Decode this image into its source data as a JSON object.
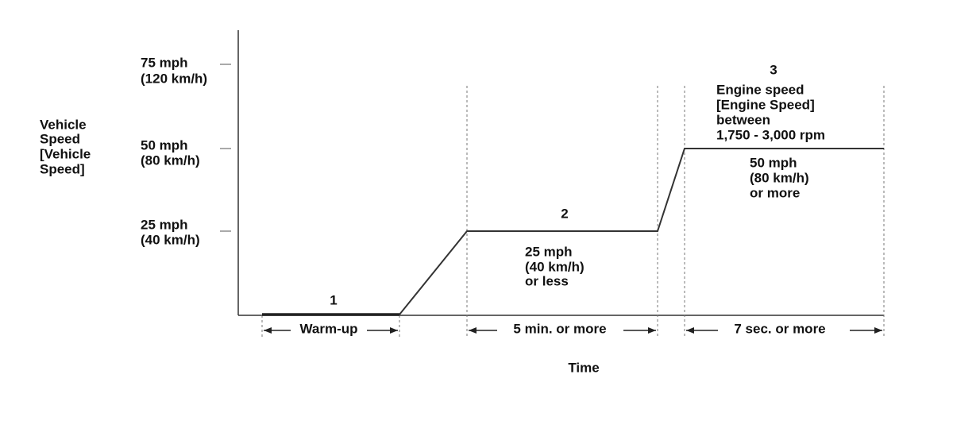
{
  "y_axis": {
    "label": [
      "Vehicle",
      "Speed",
      "[Vehicle",
      "Speed]"
    ],
    "ticks": [
      [
        "75 mph",
        "(120 km/h)"
      ],
      [
        "50 mph",
        "(80 km/h)"
      ],
      [
        "25 mph",
        "(40 km/h)"
      ]
    ]
  },
  "x_axis": {
    "label": "Time"
  },
  "stages": [
    {
      "number": "1",
      "duration": "Warm-up"
    },
    {
      "number": "2",
      "condition": [
        "25 mph",
        "(40 km/h)",
        "or less"
      ],
      "duration": "5 min. or more"
    },
    {
      "number": "3",
      "note": [
        "Engine speed",
        "[Engine Speed]",
        "between",
        "1,750 - 3,000 rpm"
      ],
      "condition": [
        "50 mph",
        "(80 km/h)",
        "or more"
      ],
      "duration": "7 sec. or more"
    }
  ]
}
